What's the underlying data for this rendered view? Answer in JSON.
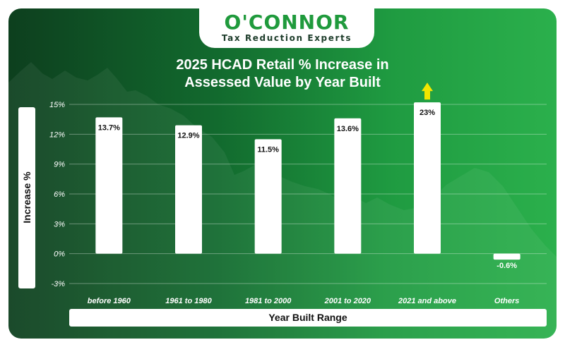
{
  "logo": {
    "name": "O'CONNOR",
    "tagline": "Tax Reduction Experts"
  },
  "colors": {
    "brand_green": "#1f9a3c",
    "bar": "#ffffff",
    "arrow": "#f2e600"
  },
  "chart_data": {
    "type": "bar",
    "title_line1": "2025 HCAD Retail % Increase in",
    "title_line2": "Assessed Value by Year Built",
    "xlabel": "Year Built Range",
    "ylabel": "Increase %",
    "categories": [
      "before 1960",
      "1961 to 1980",
      "1981 to 2000",
      "2001 to 2020",
      "2021 and above",
      "Others"
    ],
    "values": [
      13.7,
      12.9,
      11.5,
      13.6,
      23,
      -0.6
    ],
    "data_labels": [
      "13.7%",
      "12.9%",
      "11.5%",
      "13.6%",
      "23%",
      "-0.6%"
    ],
    "y_ticks": [
      15,
      12,
      9,
      6,
      3,
      0,
      -3
    ],
    "y_tick_labels": [
      "15%",
      "12%",
      "9%",
      "6%",
      "3%",
      "0%",
      "-3%"
    ],
    "ylim": [
      -3,
      15
    ],
    "clipped_above_axis": "2021 and above",
    "grid": true,
    "legend": "none"
  }
}
